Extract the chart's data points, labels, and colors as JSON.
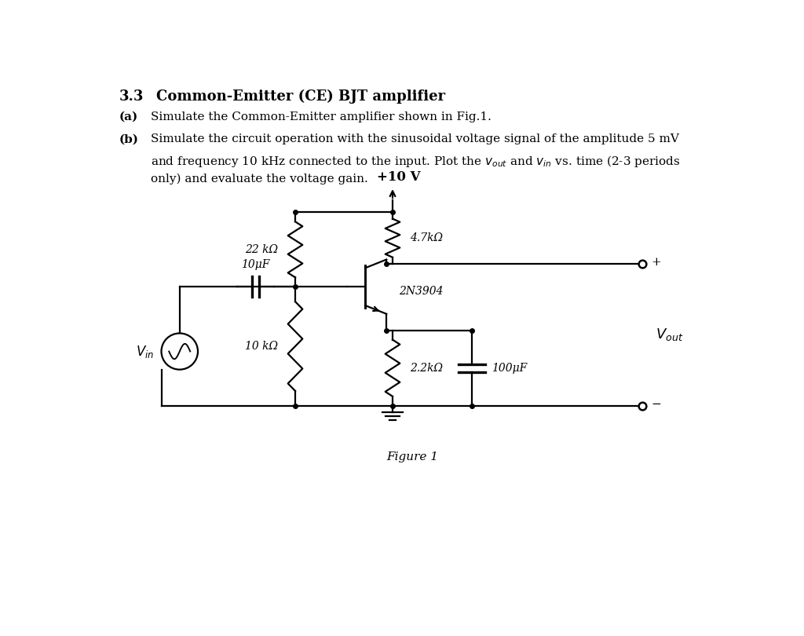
{
  "title_num": "3.3",
  "title_text": "Common-Emitter (CE) BJT amplifier",
  "part_a_label": "(a)",
  "part_a_text": "Simulate the Common-Emitter amplifier shown in Fig.1.",
  "part_b_label": "(b)",
  "part_b_line1": "Simulate the circuit operation with the sinusoidal voltage signal of the amplitude 5 mV",
  "part_b_line2": "and frequency 10 kHz connected to the input. Plot the $v_{out}$ and $v_{in}$ vs. time (2-3 periods",
  "part_b_line3": "only) and evaluate the voltage gain.",
  "fig_caption": "Figure 1",
  "vcc_label": "+10 V",
  "r1_label": "22 kΩ",
  "r2_label": "4.7kΩ",
  "r3_label": "10 kΩ",
  "r4_label": "2.2kΩ",
  "c1_label": "10μF",
  "c2_label": "100μF",
  "bjt_label": "2N3904",
  "bg_color": "#ffffff",
  "line_color": "#000000",
  "text_color": "#000000",
  "font_size_title": 13,
  "font_size_body": 11,
  "font_size_circuit": 10
}
